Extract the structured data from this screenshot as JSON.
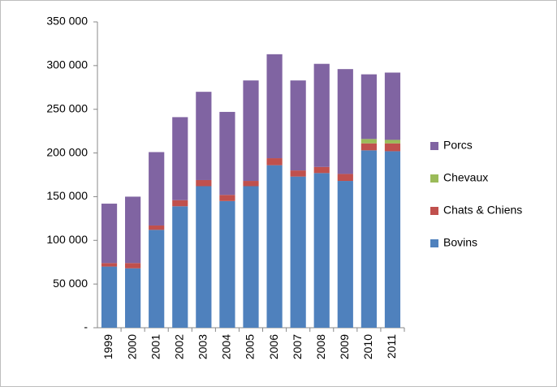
{
  "chart_data": {
    "type": "stacked_bar",
    "categories": [
      "1999",
      "2000",
      "2001",
      "2002",
      "2003",
      "2004",
      "2005",
      "2006",
      "2007",
      "2008",
      "2009",
      "2010",
      "2011"
    ],
    "series": [
      {
        "name": "Bovins",
        "color": "#4f81bd",
        "values": [
          70000,
          68000,
          112000,
          139000,
          162000,
          145000,
          162000,
          186000,
          173000,
          177000,
          168000,
          203000,
          202000
        ]
      },
      {
        "name": "Chats & Chiens",
        "color": "#c0504d",
        "values": [
          4000,
          6000,
          5000,
          7000,
          7000,
          7000,
          6000,
          8000,
          7000,
          7000,
          8000,
          8000,
          9000
        ]
      },
      {
        "name": "Chevaux",
        "color": "#9bbb59",
        "values": [
          0,
          0,
          0,
          0,
          0,
          0,
          0,
          0,
          0,
          0,
          0,
          5000,
          4000
        ]
      },
      {
        "name": "Porcs",
        "color": "#8064a2",
        "values": [
          68000,
          76000,
          84000,
          95000,
          101000,
          95000,
          115000,
          119000,
          103000,
          118000,
          120000,
          74000,
          77000
        ]
      }
    ],
    "ylim": [
      0,
      350000
    ],
    "yticks": [
      {
        "value": 0,
        "label": "-"
      },
      {
        "value": 50000,
        "label": "50 000"
      },
      {
        "value": 100000,
        "label": "100 000"
      },
      {
        "value": 150000,
        "label": "150 000"
      },
      {
        "value": 200000,
        "label": "200 000"
      },
      {
        "value": 250000,
        "label": "250 000"
      },
      {
        "value": 300000,
        "label": "300 000"
      },
      {
        "value": 350000,
        "label": "350 000"
      }
    ],
    "legend": "right"
  }
}
